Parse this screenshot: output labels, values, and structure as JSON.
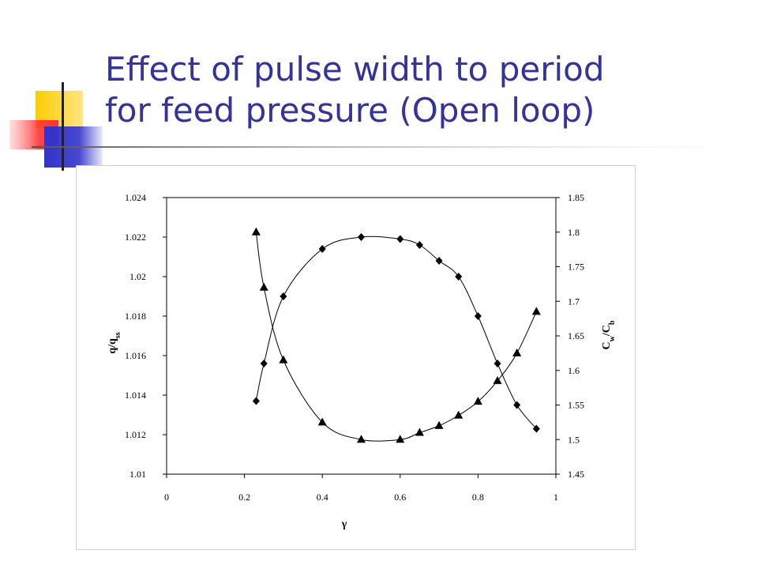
{
  "slide": {
    "title_line1": "Effect of pulse width to period",
    "title_line2": "for feed pressure (Open loop)",
    "colors": {
      "title": "#333399",
      "deco_yellow": "#ffcc00",
      "deco_blue": "#3333cc",
      "deco_red": "#ff3333"
    }
  },
  "chart_data": {
    "type": "line",
    "title": "",
    "xlabel": "γ",
    "ylabel": "q/q",
    "ylabel_sub": "ss",
    "y2label": "C",
    "y2label_sub1": "w",
    "y2label_mid": "/C",
    "y2label_sub2": "b",
    "xlim": [
      0,
      1
    ],
    "ylim": [
      1.01,
      1.024
    ],
    "y2lim": [
      1.45,
      1.85
    ],
    "x_ticks": [
      "0",
      "0.2",
      "0.4",
      "0.6",
      "0.8",
      "1"
    ],
    "y_ticks": [
      "1.01",
      "1.012",
      "1.014",
      "1.016",
      "1.018",
      "1.02",
      "1.022",
      "1.024"
    ],
    "y2_ticks": [
      "1.45",
      "1.5",
      "1.55",
      "1.6",
      "1.65",
      "1.7",
      "1.75",
      "1.8",
      "1.85"
    ],
    "grid": false,
    "legend": "none",
    "series": [
      {
        "axis": "left",
        "marker": "diamond",
        "x": [
          0.23,
          0.25,
          0.3,
          0.4,
          0.5,
          0.6,
          0.65,
          0.7,
          0.75,
          0.8,
          0.85,
          0.9,
          0.95
        ],
        "y": [
          1.0137,
          1.0156,
          1.019,
          1.0214,
          1.022,
          1.0219,
          1.0216,
          1.0208,
          1.02,
          1.018,
          1.0156,
          1.0135,
          1.0123
        ]
      },
      {
        "axis": "right",
        "marker": "triangle",
        "x": [
          0.23,
          0.25,
          0.3,
          0.4,
          0.5,
          0.6,
          0.65,
          0.7,
          0.75,
          0.8,
          0.85,
          0.9,
          0.95
        ],
        "y": [
          1.8,
          1.72,
          1.615,
          1.525,
          1.5,
          1.5,
          1.51,
          1.52,
          1.535,
          1.555,
          1.585,
          1.625,
          1.685
        ]
      }
    ]
  }
}
